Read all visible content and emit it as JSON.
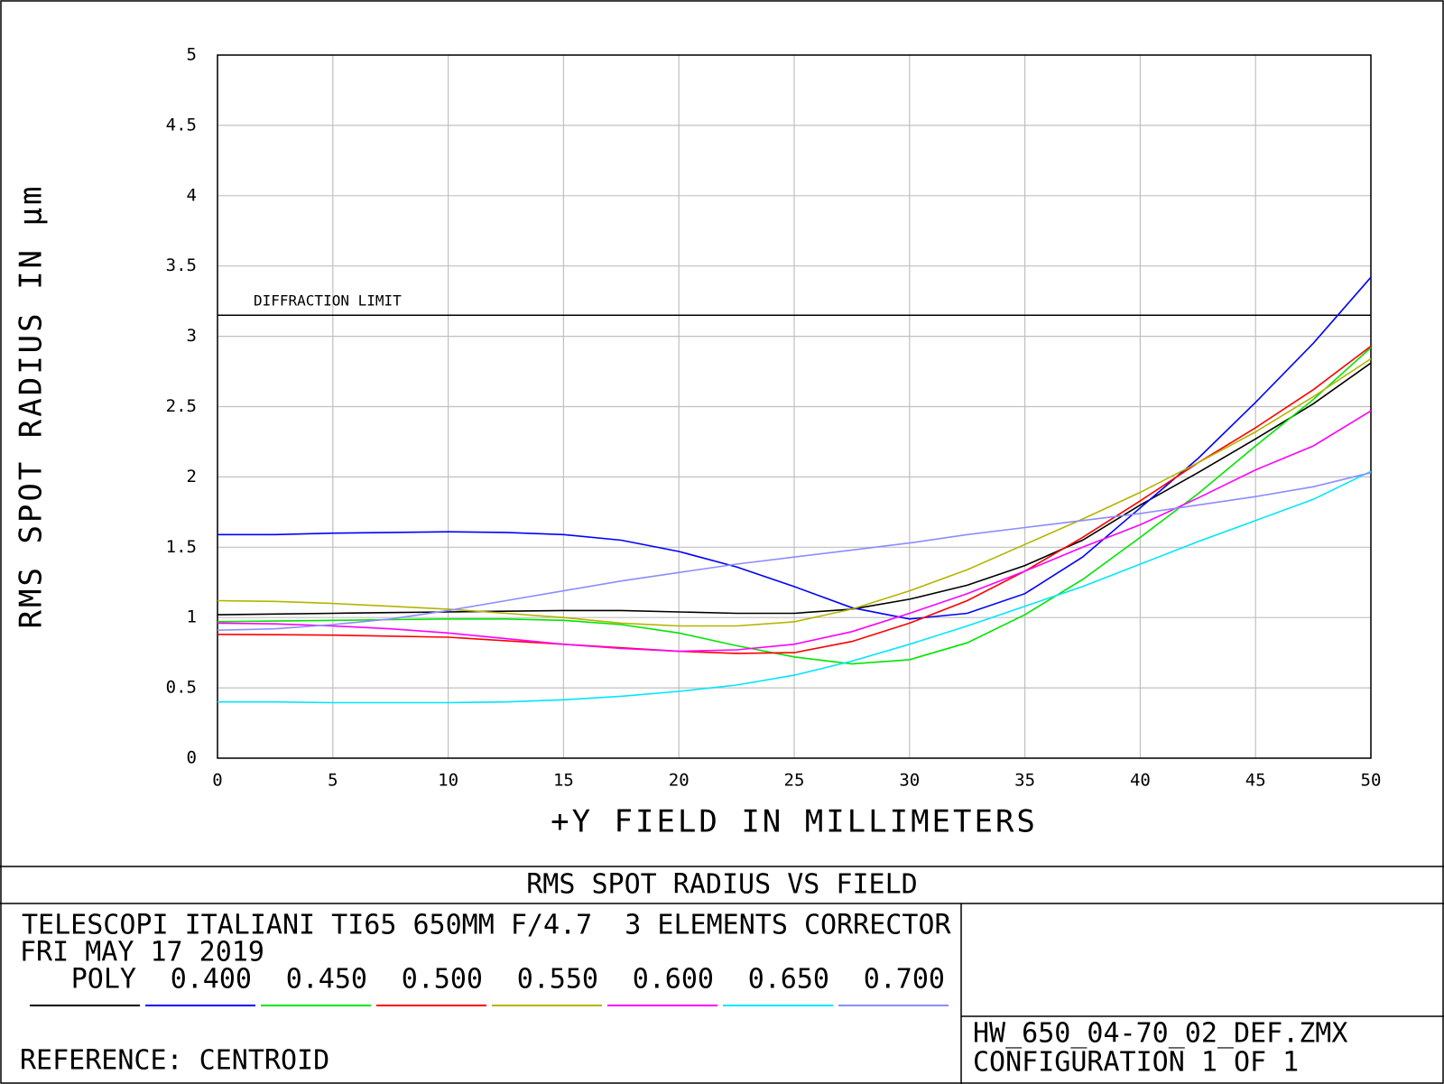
{
  "chart_data": {
    "type": "line",
    "xlabel": "+Y FIELD IN MILLIMETERS",
    "ylabel": "RMS SPOT RADIUS IN µm",
    "x": [
      0,
      2.5,
      5,
      7.5,
      10,
      12.5,
      15,
      17.5,
      20,
      22.5,
      25,
      27.5,
      30,
      32.5,
      35,
      37.5,
      40,
      42.5,
      45,
      47.5,
      50
    ],
    "series": [
      {
        "name": "POLY",
        "color": "#000000",
        "values": [
          1.02,
          1.025,
          1.03,
          1.035,
          1.04,
          1.045,
          1.05,
          1.05,
          1.04,
          1.03,
          1.03,
          1.06,
          1.13,
          1.23,
          1.37,
          1.55,
          1.8,
          2.03,
          2.27,
          2.52,
          2.81
        ]
      },
      {
        "name": "0.400",
        "color": "#0000ff",
        "values": [
          1.59,
          1.59,
          1.6,
          1.605,
          1.61,
          1.605,
          1.59,
          1.55,
          1.47,
          1.36,
          1.22,
          1.07,
          0.99,
          1.03,
          1.17,
          1.43,
          1.78,
          2.13,
          2.53,
          2.95,
          3.42
        ]
      },
      {
        "name": "0.450",
        "color": "#00e600",
        "values": [
          0.97,
          0.975,
          0.98,
          0.985,
          0.99,
          0.99,
          0.98,
          0.95,
          0.89,
          0.8,
          0.72,
          0.67,
          0.7,
          0.82,
          1.02,
          1.27,
          1.57,
          1.88,
          2.22,
          2.55,
          2.92
        ]
      },
      {
        "name": "0.500",
        "color": "#ff0000",
        "values": [
          0.88,
          0.878,
          0.875,
          0.868,
          0.86,
          0.835,
          0.81,
          0.785,
          0.76,
          0.745,
          0.75,
          0.83,
          0.96,
          1.12,
          1.33,
          1.57,
          1.83,
          2.1,
          2.35,
          2.62,
          2.93
        ]
      },
      {
        "name": "0.550",
        "color": "#b4b400",
        "values": [
          1.12,
          1.115,
          1.1,
          1.08,
          1.06,
          1.03,
          1.0,
          0.96,
          0.94,
          0.94,
          0.97,
          1.06,
          1.19,
          1.34,
          1.52,
          1.7,
          1.89,
          2.1,
          2.32,
          2.57,
          2.84
        ]
      },
      {
        "name": "0.600",
        "color": "#ff00ff",
        "values": [
          0.96,
          0.955,
          0.94,
          0.92,
          0.89,
          0.85,
          0.81,
          0.78,
          0.76,
          0.77,
          0.81,
          0.9,
          1.03,
          1.17,
          1.33,
          1.5,
          1.66,
          1.85,
          2.05,
          2.22,
          2.47
        ]
      },
      {
        "name": "0.650",
        "color": "#00e6ff",
        "values": [
          0.4,
          0.4,
          0.395,
          0.395,
          0.395,
          0.4,
          0.415,
          0.44,
          0.475,
          0.52,
          0.59,
          0.69,
          0.81,
          0.94,
          1.08,
          1.22,
          1.38,
          1.54,
          1.69,
          1.84,
          2.04
        ]
      },
      {
        "name": "0.700",
        "color": "#8c8cff",
        "values": [
          0.91,
          0.92,
          0.95,
          0.99,
          1.05,
          1.12,
          1.19,
          1.26,
          1.32,
          1.38,
          1.43,
          1.48,
          1.53,
          1.59,
          1.64,
          1.69,
          1.74,
          1.8,
          1.86,
          1.93,
          2.03
        ]
      }
    ],
    "diffraction_limit": {
      "label": "DIFFRACTION LIMIT",
      "value": 3.15
    },
    "xlim": [
      0,
      50
    ],
    "xticks": [
      0,
      5,
      10,
      15,
      20,
      25,
      30,
      35,
      40,
      45,
      50
    ],
    "ylim": [
      0,
      5
    ],
    "yticks": [
      0,
      0.5,
      1,
      1.5,
      2,
      2.5,
      3,
      3.5,
      4,
      4.5,
      5
    ],
    "grid": true
  },
  "footer": {
    "title": "RMS SPOT RADIUS VS FIELD",
    "description": "TELESCOPI ITALIANI TI65 650MM F/4.7  3 ELEMENTS CORRECTOR",
    "date": "FRI MAY 17 2019",
    "reference": "REFERENCE: CENTROID",
    "file": "HW_650_04-70_02_DEF.ZMX",
    "configuration": "CONFIGURATION 1 OF 1"
  }
}
